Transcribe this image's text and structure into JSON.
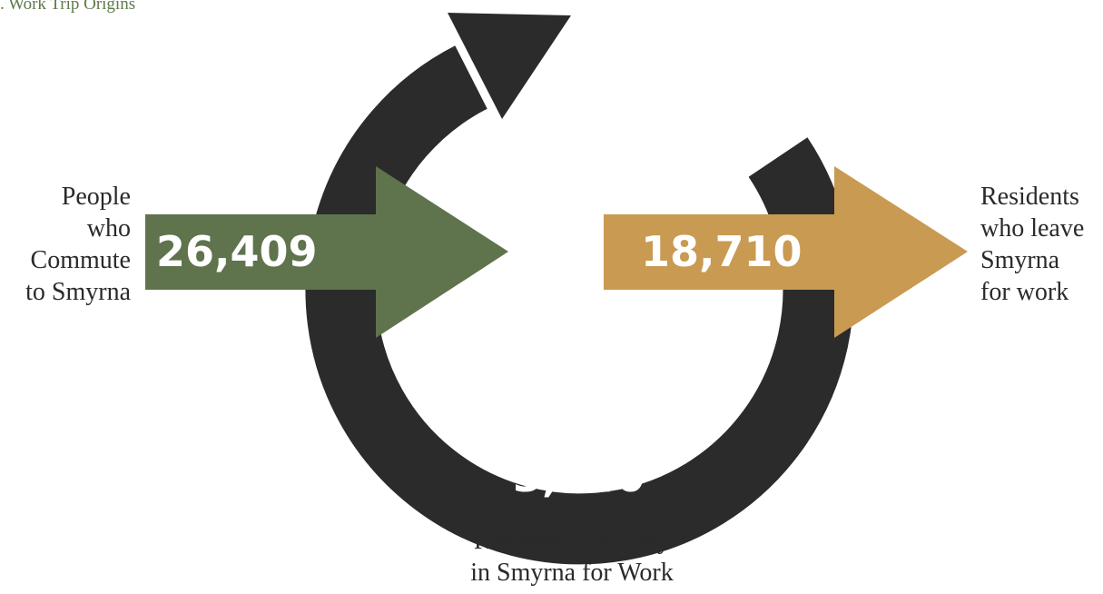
{
  "caption": {
    "text": ". Work Trip Origins",
    "color": "#5e7a4a"
  },
  "colors": {
    "loop": "#2b2b2b",
    "inbound": "#5f734d",
    "outbound": "#c99a52",
    "label_text": "#2a2a2a",
    "value_text": "#ffffff"
  },
  "flows": {
    "inbound": {
      "value": "26,409",
      "label_lines": [
        "People",
        "who",
        "Commute",
        "to Smyrna"
      ]
    },
    "outbound": {
      "value": "18,710",
      "label_lines": [
        "Residents",
        "who leave",
        "Smyrna",
        "for work"
      ]
    },
    "stay": {
      "value": "3,340",
      "label_lines": [
        "Residents who stay",
        "in Smyrna for Work"
      ]
    }
  }
}
